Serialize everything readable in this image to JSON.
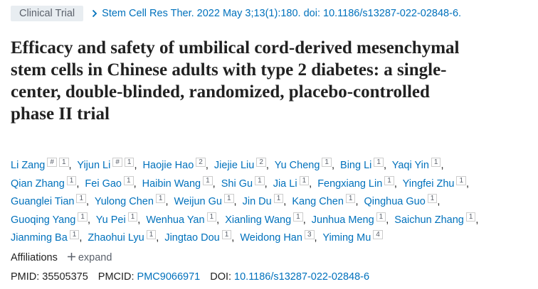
{
  "header": {
    "badge": "Clinical Trial",
    "citation": "Stem Cell Res Ther. 2022 May 3;13(1):180. doi: 10.1186/s13287-022-02848-6."
  },
  "title": "Efficacy and safety of umbilical cord-derived mesenchymal stem cells in Chinese adults with type 2 diabetes: a single-center, double-blinded, randomized, placebo-controlled phase II trial",
  "authors": [
    {
      "name": "Li Zang",
      "marks": [
        "#",
        "1"
      ]
    },
    {
      "name": "Yijun Li",
      "marks": [
        "#",
        "1"
      ]
    },
    {
      "name": "Haojie Hao",
      "marks": [
        "2"
      ]
    },
    {
      "name": "Jiejie Liu",
      "marks": [
        "2"
      ]
    },
    {
      "name": "Yu Cheng",
      "marks": [
        "1"
      ]
    },
    {
      "name": "Bing Li",
      "marks": [
        "1"
      ]
    },
    {
      "name": "Yaqi Yin",
      "marks": [
        "1"
      ]
    },
    {
      "name": "Qian Zhang",
      "marks": [
        "1"
      ]
    },
    {
      "name": "Fei Gao",
      "marks": [
        "1"
      ]
    },
    {
      "name": "Haibin Wang",
      "marks": [
        "1"
      ]
    },
    {
      "name": "Shi Gu",
      "marks": [
        "1"
      ]
    },
    {
      "name": "Jia Li",
      "marks": [
        "1"
      ]
    },
    {
      "name": "Fengxiang Lin",
      "marks": [
        "1"
      ]
    },
    {
      "name": "Yingfei Zhu",
      "marks": [
        "1"
      ]
    },
    {
      "name": "Guanglei Tian",
      "marks": [
        "1"
      ]
    },
    {
      "name": "Yulong Chen",
      "marks": [
        "1"
      ]
    },
    {
      "name": "Weijun Gu",
      "marks": [
        "1"
      ]
    },
    {
      "name": "Jin Du",
      "marks": [
        "1"
      ]
    },
    {
      "name": "Kang Chen",
      "marks": [
        "1"
      ]
    },
    {
      "name": "Qinghua Guo",
      "marks": [
        "1"
      ]
    },
    {
      "name": "Guoqing Yang",
      "marks": [
        "1"
      ]
    },
    {
      "name": "Yu Pei",
      "marks": [
        "1"
      ]
    },
    {
      "name": "Wenhua Yan",
      "marks": [
        "1"
      ]
    },
    {
      "name": "Xianling Wang",
      "marks": [
        "1"
      ]
    },
    {
      "name": "Junhua Meng",
      "marks": [
        "1"
      ]
    },
    {
      "name": "Saichun Zhang",
      "marks": [
        "1"
      ]
    },
    {
      "name": "Jianming Ba",
      "marks": [
        "1"
      ]
    },
    {
      "name": "Zhaohui Lyu",
      "marks": [
        "1"
      ]
    },
    {
      "name": "Jingtao Dou",
      "marks": [
        "1"
      ]
    },
    {
      "name": "Weidong Han",
      "marks": [
        "3"
      ]
    },
    {
      "name": "Yiming Mu",
      "marks": [
        "4"
      ]
    }
  ],
  "affiliations": {
    "label": "Affiliations",
    "toggle": "expand"
  },
  "identifiers": [
    {
      "label": "PMID:",
      "value": "35505375"
    },
    {
      "label": "PMCID:",
      "value": "PMC9066971"
    },
    {
      "label": "DOI:",
      "value": "10.1186/s13287-022-02848-6"
    }
  ]
}
